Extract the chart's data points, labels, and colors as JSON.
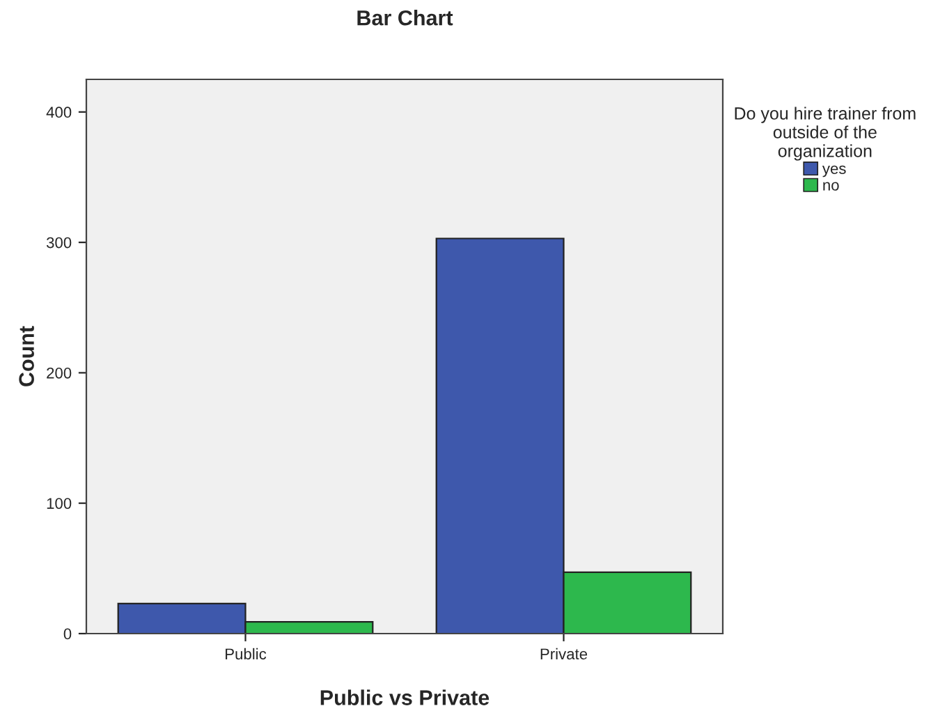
{
  "chart_data": {
    "type": "bar",
    "title": "Bar Chart",
    "xlabel": "Public vs Private",
    "ylabel": "Count",
    "legend_title": "Do you hire trainer from\noutside of the\norganization",
    "categories": [
      "Public",
      "Private"
    ],
    "series": [
      {
        "name": "yes",
        "color": "#3e58ac",
        "values": [
          23,
          303
        ]
      },
      {
        "name": "no",
        "color": "#2db84d",
        "values": [
          9,
          47
        ]
      }
    ],
    "ylim": [
      0,
      425
    ],
    "yticks": [
      0,
      100,
      200,
      300,
      400
    ],
    "grid": false,
    "legend": "top right"
  }
}
